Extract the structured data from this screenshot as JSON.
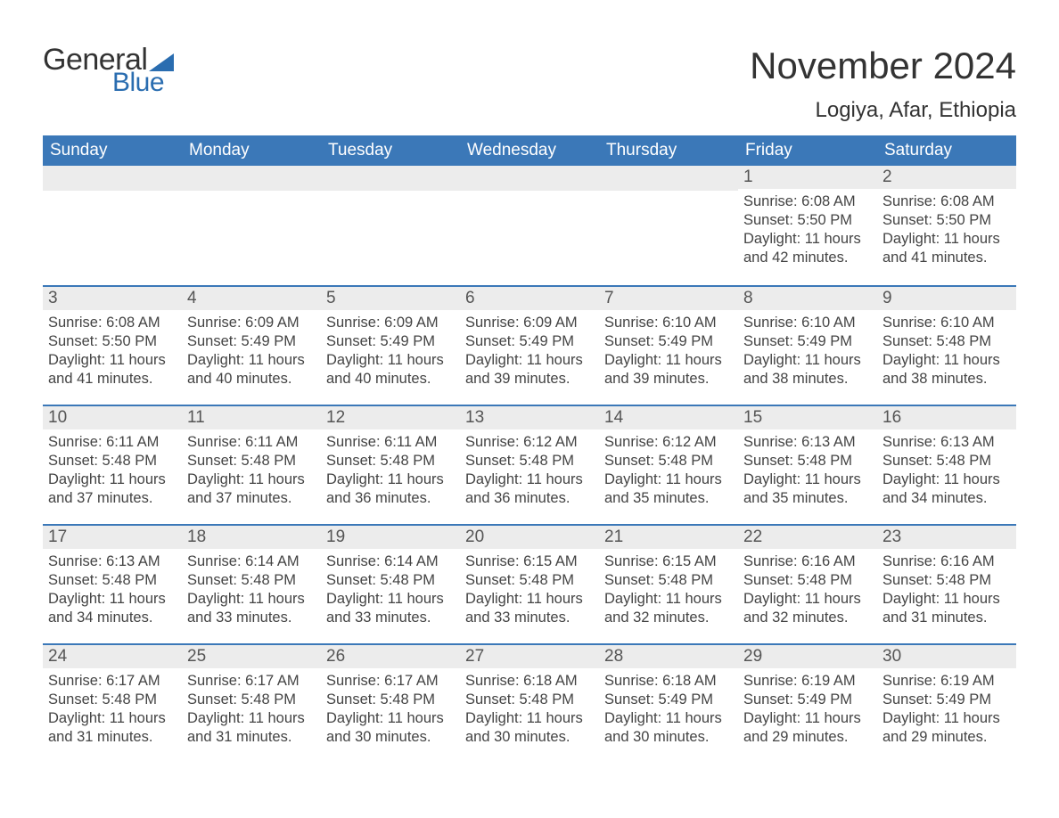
{
  "logo": {
    "text_general": "General",
    "text_blue": "Blue"
  },
  "header": {
    "month_title": "November 2024",
    "location": "Logiya, Afar, Ethiopia"
  },
  "colors": {
    "header_bg": "#3b78b8",
    "header_text": "#ffffff",
    "daynum_bg": "#ececec",
    "border_top": "#3b78b8",
    "body_text": "#444444",
    "title_text": "#333333",
    "logo_blue": "#2a6db0",
    "page_bg": "#ffffff"
  },
  "fonts": {
    "family": "Arial",
    "month_title_size": 42,
    "location_size": 24,
    "th_size": 19,
    "daynum_size": 19,
    "body_size": 16.5
  },
  "day_headers": [
    "Sunday",
    "Monday",
    "Tuesday",
    "Wednesday",
    "Thursday",
    "Friday",
    "Saturday"
  ],
  "weeks": [
    [
      null,
      null,
      null,
      null,
      null,
      {
        "n": "1",
        "sunrise": "Sunrise: 6:08 AM",
        "sunset": "Sunset: 5:50 PM",
        "daylight": "Daylight: 11 hours and 42 minutes."
      },
      {
        "n": "2",
        "sunrise": "Sunrise: 6:08 AM",
        "sunset": "Sunset: 5:50 PM",
        "daylight": "Daylight: 11 hours and 41 minutes."
      }
    ],
    [
      {
        "n": "3",
        "sunrise": "Sunrise: 6:08 AM",
        "sunset": "Sunset: 5:50 PM",
        "daylight": "Daylight: 11 hours and 41 minutes."
      },
      {
        "n": "4",
        "sunrise": "Sunrise: 6:09 AM",
        "sunset": "Sunset: 5:49 PM",
        "daylight": "Daylight: 11 hours and 40 minutes."
      },
      {
        "n": "5",
        "sunrise": "Sunrise: 6:09 AM",
        "sunset": "Sunset: 5:49 PM",
        "daylight": "Daylight: 11 hours and 40 minutes."
      },
      {
        "n": "6",
        "sunrise": "Sunrise: 6:09 AM",
        "sunset": "Sunset: 5:49 PM",
        "daylight": "Daylight: 11 hours and 39 minutes."
      },
      {
        "n": "7",
        "sunrise": "Sunrise: 6:10 AM",
        "sunset": "Sunset: 5:49 PM",
        "daylight": "Daylight: 11 hours and 39 minutes."
      },
      {
        "n": "8",
        "sunrise": "Sunrise: 6:10 AM",
        "sunset": "Sunset: 5:49 PM",
        "daylight": "Daylight: 11 hours and 38 minutes."
      },
      {
        "n": "9",
        "sunrise": "Sunrise: 6:10 AM",
        "sunset": "Sunset: 5:48 PM",
        "daylight": "Daylight: 11 hours and 38 minutes."
      }
    ],
    [
      {
        "n": "10",
        "sunrise": "Sunrise: 6:11 AM",
        "sunset": "Sunset: 5:48 PM",
        "daylight": "Daylight: 11 hours and 37 minutes."
      },
      {
        "n": "11",
        "sunrise": "Sunrise: 6:11 AM",
        "sunset": "Sunset: 5:48 PM",
        "daylight": "Daylight: 11 hours and 37 minutes."
      },
      {
        "n": "12",
        "sunrise": "Sunrise: 6:11 AM",
        "sunset": "Sunset: 5:48 PM",
        "daylight": "Daylight: 11 hours and 36 minutes."
      },
      {
        "n": "13",
        "sunrise": "Sunrise: 6:12 AM",
        "sunset": "Sunset: 5:48 PM",
        "daylight": "Daylight: 11 hours and 36 minutes."
      },
      {
        "n": "14",
        "sunrise": "Sunrise: 6:12 AM",
        "sunset": "Sunset: 5:48 PM",
        "daylight": "Daylight: 11 hours and 35 minutes."
      },
      {
        "n": "15",
        "sunrise": "Sunrise: 6:13 AM",
        "sunset": "Sunset: 5:48 PM",
        "daylight": "Daylight: 11 hours and 35 minutes."
      },
      {
        "n": "16",
        "sunrise": "Sunrise: 6:13 AM",
        "sunset": "Sunset: 5:48 PM",
        "daylight": "Daylight: 11 hours and 34 minutes."
      }
    ],
    [
      {
        "n": "17",
        "sunrise": "Sunrise: 6:13 AM",
        "sunset": "Sunset: 5:48 PM",
        "daylight": "Daylight: 11 hours and 34 minutes."
      },
      {
        "n": "18",
        "sunrise": "Sunrise: 6:14 AM",
        "sunset": "Sunset: 5:48 PM",
        "daylight": "Daylight: 11 hours and 33 minutes."
      },
      {
        "n": "19",
        "sunrise": "Sunrise: 6:14 AM",
        "sunset": "Sunset: 5:48 PM",
        "daylight": "Daylight: 11 hours and 33 minutes."
      },
      {
        "n": "20",
        "sunrise": "Sunrise: 6:15 AM",
        "sunset": "Sunset: 5:48 PM",
        "daylight": "Daylight: 11 hours and 33 minutes."
      },
      {
        "n": "21",
        "sunrise": "Sunrise: 6:15 AM",
        "sunset": "Sunset: 5:48 PM",
        "daylight": "Daylight: 11 hours and 32 minutes."
      },
      {
        "n": "22",
        "sunrise": "Sunrise: 6:16 AM",
        "sunset": "Sunset: 5:48 PM",
        "daylight": "Daylight: 11 hours and 32 minutes."
      },
      {
        "n": "23",
        "sunrise": "Sunrise: 6:16 AM",
        "sunset": "Sunset: 5:48 PM",
        "daylight": "Daylight: 11 hours and 31 minutes."
      }
    ],
    [
      {
        "n": "24",
        "sunrise": "Sunrise: 6:17 AM",
        "sunset": "Sunset: 5:48 PM",
        "daylight": "Daylight: 11 hours and 31 minutes."
      },
      {
        "n": "25",
        "sunrise": "Sunrise: 6:17 AM",
        "sunset": "Sunset: 5:48 PM",
        "daylight": "Daylight: 11 hours and 31 minutes."
      },
      {
        "n": "26",
        "sunrise": "Sunrise: 6:17 AM",
        "sunset": "Sunset: 5:48 PM",
        "daylight": "Daylight: 11 hours and 30 minutes."
      },
      {
        "n": "27",
        "sunrise": "Sunrise: 6:18 AM",
        "sunset": "Sunset: 5:48 PM",
        "daylight": "Daylight: 11 hours and 30 minutes."
      },
      {
        "n": "28",
        "sunrise": "Sunrise: 6:18 AM",
        "sunset": "Sunset: 5:49 PM",
        "daylight": "Daylight: 11 hours and 30 minutes."
      },
      {
        "n": "29",
        "sunrise": "Sunrise: 6:19 AM",
        "sunset": "Sunset: 5:49 PM",
        "daylight": "Daylight: 11 hours and 29 minutes."
      },
      {
        "n": "30",
        "sunrise": "Sunrise: 6:19 AM",
        "sunset": "Sunset: 5:49 PM",
        "daylight": "Daylight: 11 hours and 29 minutes."
      }
    ]
  ]
}
